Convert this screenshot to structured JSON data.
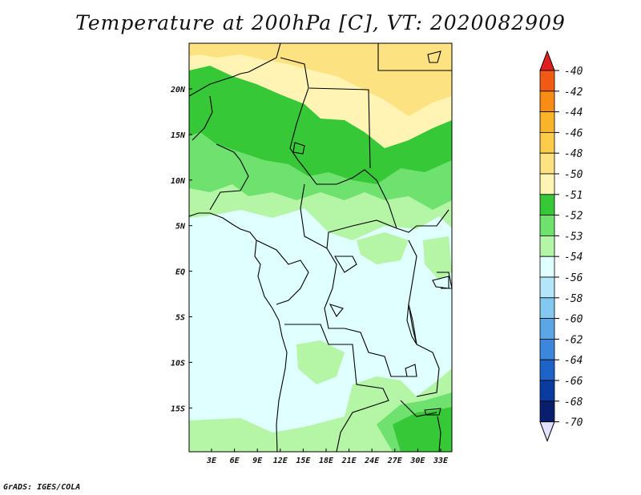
{
  "title": "Temperature at 200hPa [C], VT: 2020082909",
  "credit": "GrADS: IGES/COLA",
  "lat_labels": [
    "20N",
    "15N",
    "10N",
    "5N",
    "EQ",
    "5S",
    "10S",
    "15S"
  ],
  "lon_labels": [
    "3E",
    "6E",
    "9E",
    "12E",
    "15E",
    "18E",
    "21E",
    "24E",
    "27E",
    "30E",
    "33E"
  ],
  "legend": {
    "values": [
      "-40",
      "-42",
      "-44",
      "-46",
      "-48",
      "-50",
      "-51",
      "-52",
      "-53",
      "-54",
      "-56",
      "-58",
      "-60",
      "-62",
      "-64",
      "-66",
      "-68",
      "-70"
    ],
    "colors": [
      "#e8281c",
      "#f05a14",
      "#f88c14",
      "#fab428",
      "#fccc4a",
      "#fde282",
      "#fff4b4",
      "#37c837",
      "#6ee16e",
      "#b4f5a6",
      "#e0ffff",
      "#b4e6fa",
      "#82c8f0",
      "#5aa6e6",
      "#3c87dc",
      "#1e64c8",
      "#0a3ca0",
      "#0a1e6e"
    ],
    "top_color": "#e21e1e",
    "bottom_color": "#e0e0ff"
  },
  "colors": {
    "c50": "#fde282",
    "c51": "#fff4b4",
    "c52": "#37c837",
    "c53": "#6ee16e",
    "c54": "#b4f5a6",
    "c56": "#e0ffff",
    "border": "#000000"
  }
}
